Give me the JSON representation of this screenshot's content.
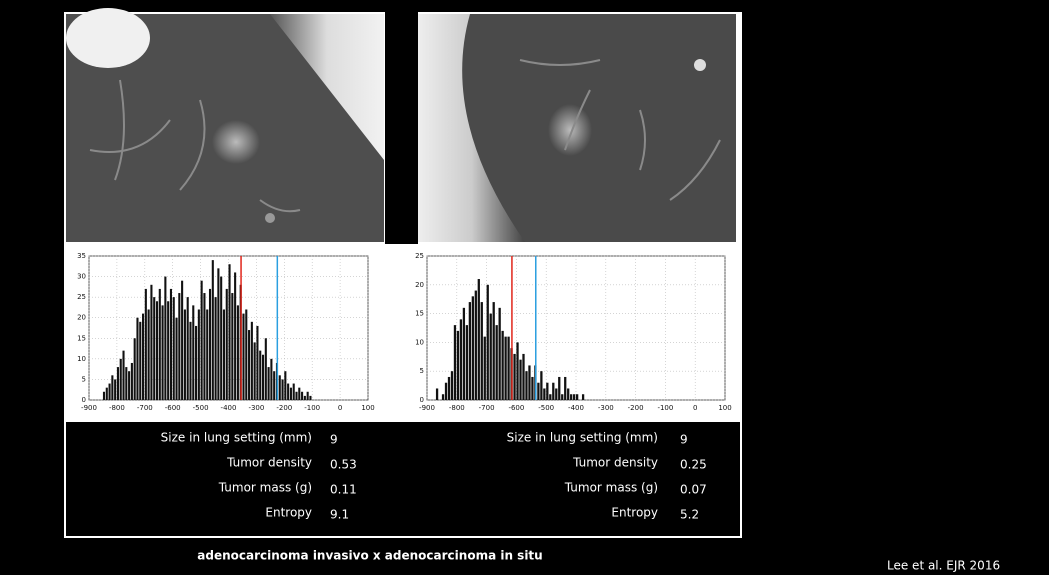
{
  "chart_data": [
    {
      "type": "histogram",
      "bins": [
        -850,
        -840,
        -830,
        -820,
        -810,
        -800,
        -790,
        -780,
        -770,
        -760,
        -750,
        -740,
        -730,
        -720,
        -710,
        -700,
        -690,
        -680,
        -670,
        -660,
        -650,
        -640,
        -630,
        -620,
        -610,
        -600,
        -590,
        -580,
        -570,
        -560,
        -550,
        -540,
        -530,
        -520,
        -510,
        -500,
        -490,
        -480,
        -470,
        -460,
        -450,
        -440,
        -430,
        -420,
        -410,
        -400,
        -390,
        -380,
        -370,
        -360,
        -350,
        -340,
        -330,
        -320,
        -310,
        -300,
        -290,
        -280,
        -270,
        -260,
        -250,
        -240,
        -230,
        -220,
        -210,
        -200,
        -190,
        -180,
        -170,
        -160,
        -150,
        -140,
        -130,
        -120,
        -110,
        -100
      ],
      "values": [
        2,
        3,
        4,
        6,
        5,
        8,
        10,
        12,
        8,
        7,
        9,
        15,
        20,
        19,
        21,
        27,
        22,
        28,
        25,
        24,
        27,
        23,
        30,
        24,
        27,
        25,
        20,
        26,
        29,
        22,
        25,
        19,
        23,
        18,
        22,
        29,
        26,
        22,
        27,
        34,
        25,
        32,
        30,
        22,
        27,
        33,
        26,
        31,
        23,
        28,
        21,
        22,
        17,
        19,
        14,
        18,
        12,
        11,
        15,
        8,
        10,
        7,
        9,
        6,
        5,
        7,
        4,
        3,
        4,
        2,
        3,
        2,
        1,
        2,
        1
      ],
      "color": "#111111",
      "xlim": [
        -900,
        100
      ],
      "xticks": [
        -900,
        -800,
        -700,
        -600,
        -500,
        -400,
        -300,
        -200,
        -100,
        0,
        100
      ],
      "ylim": [
        0,
        35
      ],
      "yticks": [
        0,
        5,
        10,
        15,
        20,
        25,
        30,
        35
      ],
      "grid": true,
      "vlines": [
        {
          "value": -355,
          "color": "#e0261b"
        },
        {
          "value": -225,
          "color": "#2a9fe0"
        }
      ]
    },
    {
      "type": "histogram",
      "bins": [
        -870,
        -860,
        -850,
        -840,
        -830,
        -820,
        -810,
        -800,
        -790,
        -780,
        -770,
        -760,
        -750,
        -740,
        -730,
        -720,
        -710,
        -700,
        -690,
        -680,
        -670,
        -660,
        -650,
        -640,
        -630,
        -620,
        -610,
        -600,
        -590,
        -580,
        -570,
        -560,
        -550,
        -540,
        -530,
        -520,
        -510,
        -500,
        -490,
        -480,
        -470,
        -460,
        -450,
        -440,
        -430,
        -420,
        -410,
        -400,
        -390,
        -380,
        -370
      ],
      "values": [
        2,
        0,
        1,
        3,
        4,
        5,
        13,
        12,
        14,
        16,
        13,
        17,
        18,
        19,
        21,
        17,
        11,
        20,
        15,
        17,
        13,
        16,
        12,
        11,
        11,
        9,
        8,
        10,
        7,
        8,
        5,
        6,
        4,
        6,
        3,
        5,
        2,
        3,
        1,
        3,
        2,
        4,
        1,
        4,
        2,
        1,
        1,
        1,
        0,
        1
      ],
      "color": "#111111",
      "xlim": [
        -900,
        100
      ],
      "xticks": [
        -900,
        -800,
        -700,
        -600,
        -500,
        -400,
        -300,
        -200,
        -100,
        0,
        100
      ],
      "ylim": [
        0,
        25
      ],
      "yticks": [
        0,
        5,
        10,
        15,
        20,
        25
      ],
      "grid": true,
      "vlines": [
        {
          "value": -615,
          "color": "#e0261b"
        },
        {
          "value": -535,
          "color": "#2a9fe0"
        }
      ]
    }
  ],
  "stats": [
    [
      {
        "label": "Size in lung setting (mm)",
        "value": 9
      },
      {
        "label": "Tumor density",
        "value": 0.53
      },
      {
        "label": "Tumor mass (g)",
        "value": 0.11
      },
      {
        "label": "Entropy",
        "value": 9.1
      }
    ],
    [
      {
        "label": "Size in lung setting (mm)",
        "value": 9
      },
      {
        "label": "Tumor density",
        "value": 0.25
      },
      {
        "label": "Tumor mass (g)",
        "value": 0.07
      },
      {
        "label": "Entropy",
        "value": 5.2
      }
    ]
  ],
  "caption": "adenocarcinoma invasivo x adenocarcinoma in situ",
  "credit": "Lee et al. EJR 2016"
}
